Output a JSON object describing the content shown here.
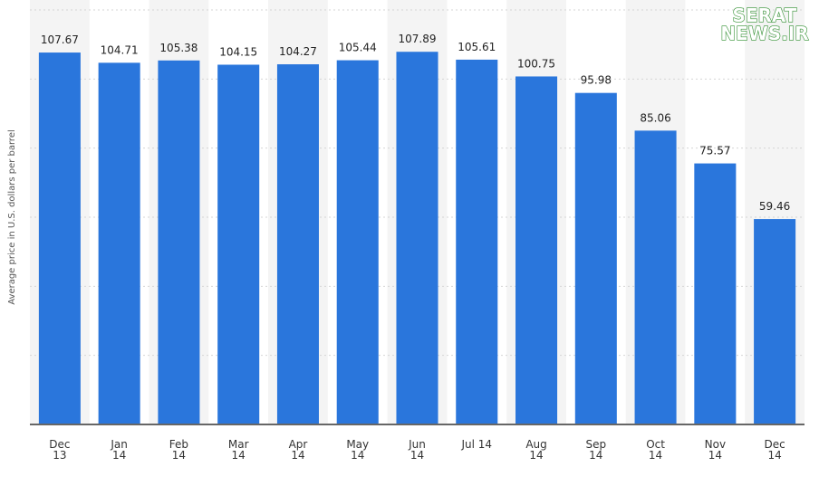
{
  "chart_data": {
    "type": "bar",
    "y_label": "Average price in U.S. dollars per barrel",
    "watermark": "SERAT\nNEWS.IR",
    "categories": [
      "Dec\n13",
      "Jan\n14",
      "Feb\n14",
      "Mar\n14",
      "Apr\n14",
      "May\n14",
      "Jun\n14",
      "Jul 14",
      "Aug\n14",
      "Sep\n14",
      "Oct\n14",
      "Nov\n14",
      "Dec\n14"
    ],
    "values": [
      107.67,
      104.71,
      105.38,
      104.15,
      104.27,
      105.44,
      107.89,
      105.61,
      100.75,
      95.98,
      85.06,
      75.57,
      59.46
    ],
    "color": "#2a76dc",
    "ylim": [
      0,
      120
    ],
    "yticks": [
      0,
      20,
      40,
      60,
      80,
      100,
      120
    ],
    "grid": true
  }
}
